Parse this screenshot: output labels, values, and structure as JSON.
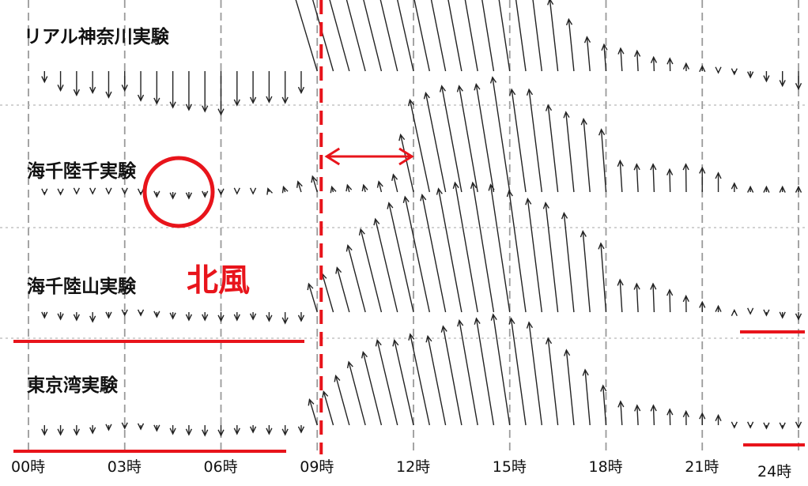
{
  "chart_data": {
    "type": "wind-vector-timeseries",
    "x_tick_labels": [
      "00時",
      "03時",
      "06時",
      "09時",
      "12時",
      "15時",
      "18時",
      "21時",
      "24時"
    ],
    "rows": [
      {
        "name": "リアル神奈川実験",
        "vectors": [
          [
            0.5,
            -0.14
          ],
          [
            1.0,
            -0.25
          ],
          [
            1.5,
            -0.31
          ],
          [
            2.0,
            -0.28
          ],
          [
            2.5,
            -0.34
          ],
          [
            3.0,
            -0.25
          ],
          [
            3.5,
            -0.38
          ],
          [
            4.0,
            -0.42
          ],
          [
            4.5,
            -0.47
          ],
          [
            5.0,
            -0.5
          ],
          [
            5.5,
            -0.52
          ],
          [
            6.0,
            -0.56
          ],
          [
            6.5,
            -0.44
          ],
          [
            7.0,
            -0.41
          ],
          [
            7.5,
            -0.4
          ],
          [
            8.0,
            -0.41
          ],
          [
            8.5,
            -0.28
          ],
          [
            9.0,
            0.65
          ],
          [
            9.5,
            0.88
          ],
          [
            10.0,
            0.97
          ],
          [
            10.5,
            1.0
          ],
          [
            11.0,
            0.98
          ],
          [
            11.5,
            0.99
          ],
          [
            12.0,
            0.97
          ],
          [
            12.5,
            0.94
          ],
          [
            13.0,
            0.9
          ],
          [
            13.5,
            0.89
          ],
          [
            14.0,
            0.89
          ],
          [
            14.5,
            0.86
          ],
          [
            15.0,
            0.82
          ],
          [
            15.5,
            0.73
          ],
          [
            16.0,
            0.67
          ],
          [
            16.5,
            0.57
          ],
          [
            17.0,
            0.41
          ],
          [
            17.5,
            0.27
          ],
          [
            18.0,
            0.21
          ],
          [
            18.5,
            0.18
          ],
          [
            19.0,
            0.16
          ],
          [
            19.5,
            0.11
          ],
          [
            20.0,
            0.1
          ],
          [
            20.5,
            0.06
          ],
          [
            21.0,
            0.04
          ],
          [
            21.5,
            -0.02
          ],
          [
            22.0,
            -0.04
          ],
          [
            22.5,
            -0.08
          ],
          [
            23.0,
            -0.13
          ],
          [
            23.5,
            -0.19
          ],
          [
            24.0,
            -0.23
          ]
        ]
      },
      {
        "name": "海千陸千実験",
        "vectors": [
          [
            0.5,
            -0.03
          ],
          [
            1.0,
            -0.03
          ],
          [
            1.5,
            -0.02
          ],
          [
            2.0,
            -0.02
          ],
          [
            2.5,
            -0.02
          ],
          [
            3.0,
            -0.02
          ],
          [
            3.5,
            -0.03
          ],
          [
            4.0,
            -0.06
          ],
          [
            4.5,
            -0.08
          ],
          [
            5.0,
            -0.08
          ],
          [
            5.5,
            -0.06
          ],
          [
            6.0,
            -0.03
          ],
          [
            6.5,
            -0.02
          ],
          [
            7.0,
            -0.02
          ],
          [
            7.5,
            0.02
          ],
          [
            8.0,
            0.03
          ],
          [
            8.5,
            0.06
          ],
          [
            9.0,
            0.09
          ],
          [
            9.5,
            0.03
          ],
          [
            10.0,
            0.04
          ],
          [
            10.5,
            0.04
          ],
          [
            11.0,
            0.06
          ],
          [
            11.5,
            0.1
          ],
          [
            12.0,
            0.33
          ],
          [
            12.5,
            0.53
          ],
          [
            13.0,
            0.57
          ],
          [
            13.5,
            0.61
          ],
          [
            14.0,
            0.61
          ],
          [
            14.5,
            0.62
          ],
          [
            15.0,
            0.66
          ],
          [
            15.5,
            0.59
          ],
          [
            16.0,
            0.59
          ],
          [
            16.5,
            0.5
          ],
          [
            17.0,
            0.46
          ],
          [
            17.5,
            0.42
          ],
          [
            18.0,
            0.36
          ],
          [
            18.5,
            0.18
          ],
          [
            19.0,
            0.16
          ],
          [
            19.5,
            0.16
          ],
          [
            20.0,
            0.13
          ],
          [
            20.5,
            0.16
          ],
          [
            21.0,
            0.14
          ],
          [
            21.5,
            0.11
          ],
          [
            22.0,
            0.05
          ],
          [
            22.5,
            0.03
          ],
          [
            23.0,
            0.03
          ],
          [
            23.5,
            0.03
          ],
          [
            24.0,
            0.03
          ]
        ]
      },
      {
        "name": "海千陸山実験",
        "vectors": [
          [
            0.5,
            -0.07
          ],
          [
            1.0,
            -0.09
          ],
          [
            1.5,
            -0.1
          ],
          [
            2.0,
            -0.12
          ],
          [
            2.5,
            -0.07
          ],
          [
            3.0,
            -0.04
          ],
          [
            3.5,
            -0.04
          ],
          [
            4.0,
            -0.06
          ],
          [
            4.5,
            -0.08
          ],
          [
            5.0,
            -0.1
          ],
          [
            5.5,
            -0.1
          ],
          [
            6.0,
            -0.11
          ],
          [
            6.5,
            -0.1
          ],
          [
            7.0,
            -0.09
          ],
          [
            7.5,
            -0.11
          ],
          [
            8.0,
            -0.14
          ],
          [
            8.5,
            -0.11
          ],
          [
            9.0,
            0.14
          ],
          [
            9.5,
            0.19
          ],
          [
            10.0,
            0.22
          ],
          [
            10.5,
            0.33
          ],
          [
            11.0,
            0.41
          ],
          [
            11.5,
            0.46
          ],
          [
            12.0,
            0.54
          ],
          [
            12.5,
            0.57
          ],
          [
            13.0,
            0.58
          ],
          [
            13.5,
            0.61
          ],
          [
            14.0,
            0.64
          ],
          [
            14.5,
            0.64
          ],
          [
            15.0,
            0.63
          ],
          [
            15.5,
            0.6
          ],
          [
            16.0,
            0.56
          ],
          [
            16.5,
            0.54
          ],
          [
            17.0,
            0.49
          ],
          [
            17.5,
            0.4
          ],
          [
            18.0,
            0.34
          ],
          [
            18.5,
            0.16
          ],
          [
            19.0,
            0.14
          ],
          [
            19.5,
            0.14
          ],
          [
            20.0,
            0.11
          ],
          [
            20.5,
            0.08
          ],
          [
            21.0,
            0.05
          ],
          [
            21.5,
            0.03
          ],
          [
            22.0,
            0.01
          ],
          [
            22.5,
            -0.02
          ],
          [
            23.0,
            -0.04
          ],
          [
            23.5,
            -0.07
          ],
          [
            24.0,
            -0.09
          ]
        ]
      },
      {
        "name": "東京湾実験",
        "vectors": [
          [
            0.5,
            -0.12
          ],
          [
            1.0,
            -0.12
          ],
          [
            1.5,
            -0.12
          ],
          [
            2.0,
            -0.1
          ],
          [
            2.5,
            -0.06
          ],
          [
            3.0,
            -0.04
          ],
          [
            3.5,
            -0.05
          ],
          [
            4.0,
            -0.07
          ],
          [
            4.5,
            -0.11
          ],
          [
            5.0,
            -0.12
          ],
          [
            5.5,
            -0.13
          ],
          [
            6.0,
            -0.13
          ],
          [
            6.5,
            -0.11
          ],
          [
            7.0,
            -0.09
          ],
          [
            7.5,
            -0.11
          ],
          [
            8.0,
            -0.12
          ],
          [
            8.5,
            -0.09
          ],
          [
            9.0,
            0.13
          ],
          [
            9.5,
            0.17
          ],
          [
            10.0,
            0.25
          ],
          [
            10.5,
            0.32
          ],
          [
            11.0,
            0.37
          ],
          [
            11.5,
            0.43
          ],
          [
            12.0,
            0.43
          ],
          [
            12.5,
            0.46
          ],
          [
            13.0,
            0.45
          ],
          [
            13.5,
            0.5
          ],
          [
            14.0,
            0.53
          ],
          [
            14.5,
            0.54
          ],
          [
            15.0,
            0.56
          ],
          [
            15.5,
            0.54
          ],
          [
            16.0,
            0.52
          ],
          [
            16.5,
            0.44
          ],
          [
            17.0,
            0.38
          ],
          [
            17.5,
            0.28
          ],
          [
            18.0,
            0.2
          ],
          [
            18.5,
            0.12
          ],
          [
            19.0,
            0.1
          ],
          [
            19.5,
            0.1
          ],
          [
            20.0,
            0.08
          ],
          [
            20.5,
            0.07
          ],
          [
            21.0,
            0.06
          ],
          [
            21.5,
            0.05
          ],
          [
            22.0,
            -0.03
          ],
          [
            22.5,
            -0.03
          ],
          [
            23.0,
            -0.04
          ],
          [
            23.5,
            -0.04
          ],
          [
            24.0,
            -0.03
          ]
        ]
      }
    ],
    "annotations": {
      "north_wind_label": "北風",
      "highlight_time": 9,
      "delay_arrow": [
        9.0,
        12.0
      ]
    },
    "grid": true
  }
}
